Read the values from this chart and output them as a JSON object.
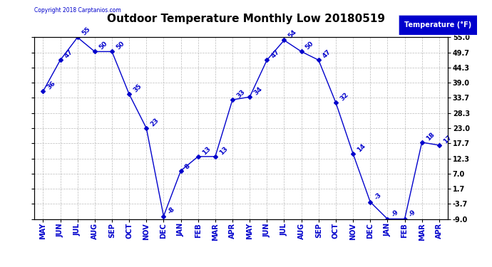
{
  "title": "Outdoor Temperature Monthly Low 20180519",
  "copyright": "Copyright 2018 Carptanios.com",
  "legend_label": "Temperature (°F)",
  "x_labels": [
    "MAY",
    "JUN",
    "JUL",
    "AUG",
    "SEP",
    "OCT",
    "NOV",
    "DEC",
    "JAN",
    "FEB",
    "MAR",
    "APR",
    "MAY",
    "JUN",
    "JUL",
    "AUG",
    "SEP",
    "OCT",
    "NOV",
    "DEC",
    "JAN",
    "FEB",
    "MAR",
    "APR"
  ],
  "y_values": [
    36,
    47,
    55,
    50,
    50,
    35,
    23,
    -8,
    8,
    13,
    13,
    33,
    34,
    47,
    54,
    50,
    47,
    32,
    14,
    -3,
    -9,
    -9,
    18,
    17
  ],
  "y_ticks": [
    55.0,
    49.7,
    44.3,
    39.0,
    33.7,
    28.3,
    23.0,
    17.7,
    12.3,
    7.0,
    1.7,
    -3.7,
    -9.0
  ],
  "ylim": [
    -9.0,
    55.0
  ],
  "line_color": "#0000CC",
  "marker": "D",
  "marker_size": 3,
  "bg_color": "#FFFFFF",
  "grid_color": "#AAAAAA",
  "title_fontsize": 11,
  "tick_fontsize": 7,
  "annot_fontsize": 6.5,
  "legend_bg": "#0000CC",
  "legend_text_color": "#FFFFFF",
  "legend_fontsize": 7
}
